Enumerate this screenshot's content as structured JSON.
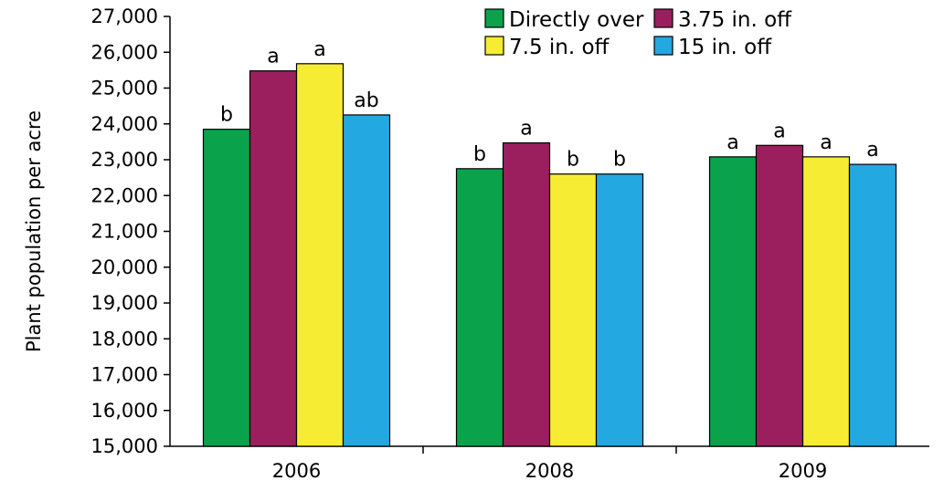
{
  "chart_data": {
    "type": "bar",
    "title": "",
    "xlabel": "",
    "ylabel": "Plant population per acre",
    "ylim": [
      15000,
      27000
    ],
    "ytick_step": 1000,
    "yticks": [
      "15,000",
      "16,000",
      "17,000",
      "18,000",
      "19,000",
      "20,000",
      "21,000",
      "22,000",
      "23,000",
      "24,000",
      "25,000",
      "26,000",
      "27,000"
    ],
    "categories": [
      "2006",
      "2008",
      "2009"
    ],
    "grid": false,
    "legend": "top-right",
    "series": [
      {
        "name": "Directly over",
        "color": "#0aa24b",
        "values": [
          23850,
          22750,
          23080
        ],
        "labels": [
          "b",
          "b",
          "a"
        ]
      },
      {
        "name": "3.75 in. off",
        "color": "#9b1f5e",
        "values": [
          25480,
          23470,
          23400
        ],
        "labels": [
          "a",
          "a",
          "a"
        ]
      },
      {
        "name": "7.5 in. off",
        "color": "#f6ec33",
        "values": [
          25680,
          22600,
          23080
        ],
        "labels": [
          "a",
          "b",
          "a"
        ]
      },
      {
        "name": "15 in. off",
        "color": "#24a8e1",
        "values": [
          24250,
          22600,
          22870
        ],
        "labels": [
          "ab",
          "b",
          "a"
        ]
      }
    ]
  }
}
